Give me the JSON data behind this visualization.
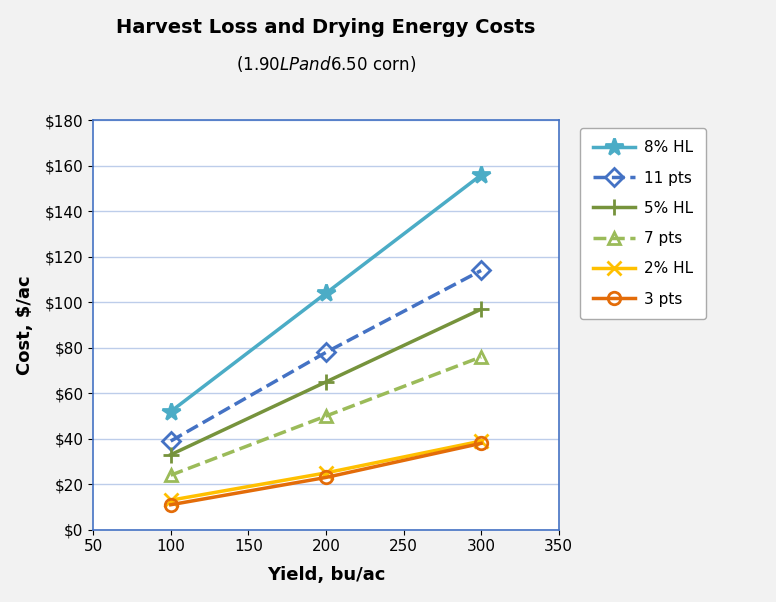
{
  "title_line1": "Harvest Loss and Drying Energy Costs",
  "title_line2": "($1.90 LP and $6.50 corn)",
  "xlabel": "Yield, bu/ac",
  "ylabel": "Cost, $/ac",
  "xlim": [
    50,
    350
  ],
  "ylim": [
    0,
    180
  ],
  "xticks": [
    50,
    100,
    150,
    200,
    250,
    300,
    350
  ],
  "yticks": [
    0,
    20,
    40,
    60,
    80,
    100,
    120,
    140,
    160,
    180
  ],
  "x_values": [
    100,
    200,
    300
  ],
  "series": [
    {
      "label": "8% HL",
      "y": [
        52,
        104,
        156
      ],
      "color": "#4bacc6",
      "linestyle": "solid",
      "marker": "*",
      "markersize": 13,
      "linewidth": 2.5,
      "hollow": false
    },
    {
      "label": "11 pts",
      "y": [
        39,
        78,
        114
      ],
      "color": "#4472c4",
      "linestyle": "dashed",
      "marker": "D",
      "markersize": 9,
      "linewidth": 2.5,
      "hollow": true
    },
    {
      "label": "5% HL",
      "y": [
        33,
        65,
        97
      ],
      "color": "#76933c",
      "linestyle": "solid",
      "marker": "+",
      "markersize": 11,
      "linewidth": 2.5,
      "hollow": false
    },
    {
      "label": "7 pts",
      "y": [
        24,
        50,
        76
      ],
      "color": "#9bbb59",
      "linestyle": "dashed",
      "marker": "^",
      "markersize": 9,
      "linewidth": 2.5,
      "hollow": true
    },
    {
      "label": "2% HL",
      "y": [
        13,
        25,
        39
      ],
      "color": "#ffc000",
      "linestyle": "solid",
      "marker": "x",
      "markersize": 10,
      "linewidth": 2.5,
      "hollow": false
    },
    {
      "label": "3 pts",
      "y": [
        11,
        23,
        38
      ],
      "color": "#e36c09",
      "linestyle": "solid",
      "marker": "o",
      "markersize": 9,
      "linewidth": 2.5,
      "hollow": true
    }
  ],
  "background_color": "#f2f2f2",
  "plot_background": "#ffffff",
  "grid_color": "#4472c4",
  "grid_alpha": 0.35
}
